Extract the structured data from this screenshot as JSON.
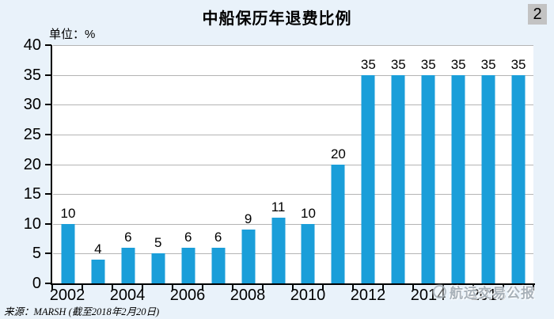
{
  "header": {
    "title": "中船保历年退费比例",
    "page_badge": "2",
    "unit_label": "单位：%"
  },
  "chart_data": {
    "type": "bar",
    "categories": [
      "2002",
      "2003",
      "2004",
      "2005",
      "2006",
      "2007",
      "2008",
      "2009",
      "2010",
      "2011",
      "2012",
      "2013",
      "2014",
      "2015",
      "2016",
      "2017"
    ],
    "values": [
      10,
      4,
      6,
      5,
      6,
      6,
      9,
      11,
      10,
      20,
      35,
      35,
      35,
      35,
      35,
      35
    ],
    "title": "中船保历年退费比例",
    "xlabel": "",
    "ylabel": "单位：%",
    "ylim": [
      0,
      40
    ],
    "y_ticks": [
      0,
      5,
      10,
      15,
      20,
      25,
      30,
      35,
      40
    ],
    "x_tick_labels": [
      "2002",
      "2004",
      "2006",
      "2008",
      "2010",
      "2012",
      "2014",
      "2016"
    ],
    "grid": true,
    "data_labels_shown": true,
    "legend": "none"
  },
  "footer": {
    "source": "来源：MARSH (截至2018年2月20日)"
  },
  "watermark": {
    "text": "航运交易公报",
    "icon": "logo-circle-icon"
  },
  "colors": {
    "page_background": "#e9f2fa",
    "plot_background": "#ffffff",
    "bar": "#1a9ed9",
    "gridline": "#b4b4b4",
    "axis": "#000000",
    "badge_background": "#c3c3c3",
    "text": "#000000"
  }
}
